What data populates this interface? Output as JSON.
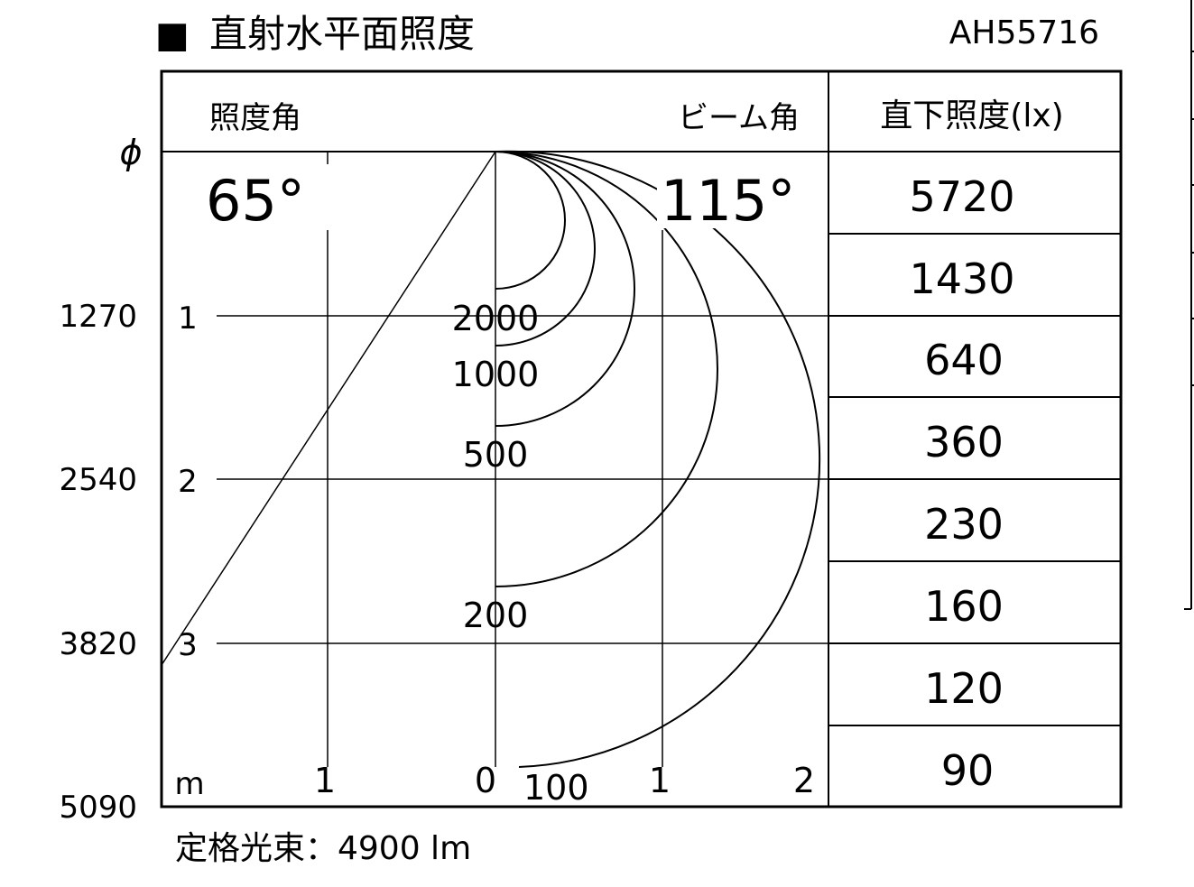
{
  "title": {
    "marker": "■",
    "text": "直射水平面照度",
    "model": "AH55716"
  },
  "header": {
    "illum_angle_label": "照度角",
    "beam_angle_label": "ビーム角",
    "column_label": "直下照度(lx)"
  },
  "angles": {
    "illum_angle": "65°",
    "beam_angle": "115°"
  },
  "diameter_symbol": "ϕ",
  "diameters": [
    "1270",
    "2540",
    "3820",
    "5090"
  ],
  "distance_labels": [
    "1",
    "2",
    "3"
  ],
  "x_axis": {
    "unit": "m",
    "ticks": [
      "1",
      "0",
      "1",
      "2"
    ]
  },
  "contours": [
    "2000",
    "1000",
    "500",
    "200",
    "100"
  ],
  "direct_illuminance": [
    "5720",
    "1430",
    "640",
    "360",
    "230",
    "160",
    "120",
    "90"
  ],
  "footer": {
    "rated_flux": "定格光束：4900 lm"
  }
}
